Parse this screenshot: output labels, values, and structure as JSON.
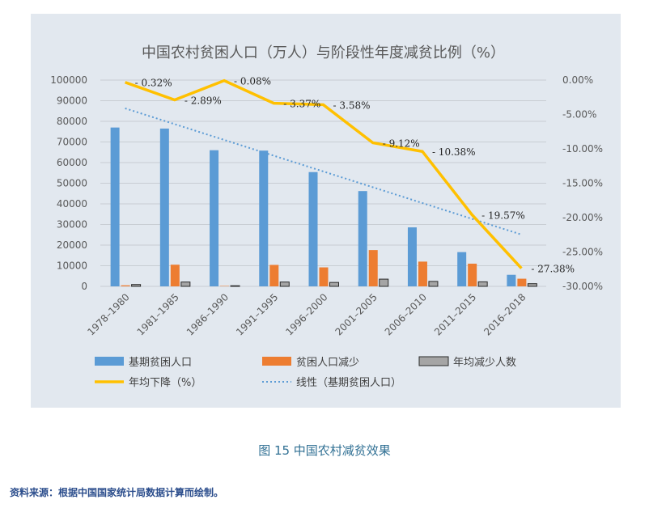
{
  "chart_data": {
    "type": "bar",
    "title": "中国农村贫困人口（万人）与阶段性年度减贫比例（%）",
    "categories": [
      "1978–1980",
      "1981–1985",
      "1986–1990",
      "1991–1995",
      "1996–2000",
      "2001–2005",
      "2006–2010",
      "2011–2015",
      "2016–2018"
    ],
    "ylim": [
      0,
      100000
    ],
    "y_ticks": [
      "0",
      "10000",
      "20000",
      "30000",
      "40000",
      "50000",
      "60000",
      "70000",
      "80000",
      "90000",
      "100000"
    ],
    "y2lim": [
      -30,
      0
    ],
    "y2_ticks": [
      "0.00%",
      "-5.00%",
      "-10.00%",
      "-15.00%",
      "-20.00%",
      "-25.00%",
      "-30.00%"
    ],
    "series": [
      {
        "name": "基期贫困人口",
        "type": "bar",
        "color": "#5b9bd5",
        "values": [
          77000,
          76500,
          66000,
          65800,
          55400,
          46200,
          28600,
          16600,
          5600
        ]
      },
      {
        "name": "贫困人口减少",
        "type": "bar",
        "color": "#ed7d31",
        "values": [
          500,
          10500,
          200,
          10400,
          9200,
          17600,
          12000,
          11000,
          3700
        ]
      },
      {
        "name": "年均减少人数",
        "type": "bar",
        "color": "#a5a5a5",
        "values": [
          900,
          2100,
          300,
          2100,
          1900,
          3500,
          2400,
          2200,
          1300
        ]
      },
      {
        "name": "年均下降（%）",
        "type": "line",
        "axis": "right",
        "color": "#ffc000",
        "values": [
          -0.32,
          -2.89,
          -0.08,
          -3.37,
          -3.58,
          -9.12,
          -10.38,
          -19.57,
          -27.38
        ],
        "labels": [
          "- 0.32%",
          "- 2.89%",
          "- 0.08%",
          "- 3.37%",
          "- 3.58%",
          "- 9.12%",
          "- 10.38%",
          "- 19.57%",
          "- 27.38%"
        ]
      },
      {
        "name": "线性（基期贫困人口）",
        "type": "trendline",
        "color": "#5b9bd5",
        "values": [
          86300,
          78650,
          71000,
          63350,
          55700,
          48050,
          40400,
          32750,
          25100
        ]
      }
    ],
    "grid": true,
    "legend_position": "bottom"
  },
  "caption": "图 15   中国农村减贫效果",
  "source": "资料来源：根据中国国家统计局数据计算而绘制。"
}
